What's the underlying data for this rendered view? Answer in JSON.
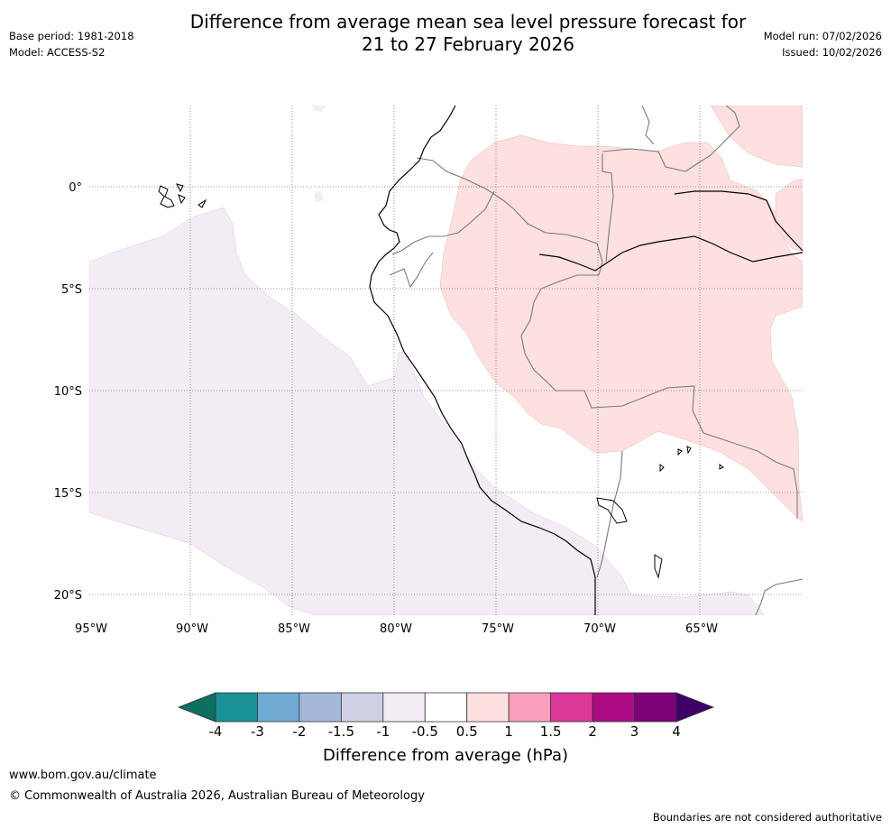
{
  "title_line1": "Difference from average mean sea level pressure forecast for",
  "title_line2": "21 to 27 February 2026",
  "base_period": "Base period: 1981-2018",
  "model": "Model: ACCESS-S2",
  "model_run": "Model run: 07/02/2026",
  "issued": "Issued: 10/02/2026",
  "lat_labels": [
    "0°",
    "5°S",
    "10°S",
    "15°S",
    "20°S"
  ],
  "lon_labels": [
    "95°W",
    "90°W",
    "85°W",
    "80°W",
    "75°W",
    "70°W",
    "65°W"
  ],
  "colorbar": {
    "title": "Difference from average (hPa)",
    "ticks": [
      "-4",
      "-3",
      "-2",
      "-1.5",
      "-1",
      "-0.5",
      "0.5",
      "1",
      "1.5",
      "2",
      "3",
      "4"
    ],
    "colors": [
      "#1a9097",
      "#6eaad2",
      "#a6b8da",
      "#cfd0e4",
      "#f3ecf5",
      "#ffffff",
      "#fde0df",
      "#f8a0bb",
      "#dc399a",
      "#ad0b83",
      "#7b0078"
    ],
    "under_color": "#0d6e62",
    "over_color": "#3c0067"
  },
  "website": "www.bom.gov.au/climate",
  "copyright": "© Commonwealth of Australia 2026, Australian Bureau of Meteorology",
  "disclaimer": "Boundaries are not considered authoritative"
}
